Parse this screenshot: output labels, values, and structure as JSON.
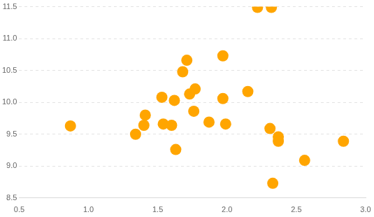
{
  "chart_data": {
    "type": "scatter",
    "x": [
      0.87,
      1.34,
      1.4,
      1.41,
      1.53,
      1.54,
      1.6,
      1.62,
      1.63,
      1.68,
      1.71,
      1.73,
      1.77,
      1.76,
      1.87,
      1.97,
      1.97,
      1.99,
      2.15,
      2.22,
      2.32,
      2.31,
      2.37,
      2.37,
      2.33,
      2.56,
      2.84
    ],
    "values": [
      9.63,
      9.5,
      9.64,
      9.8,
      10.08,
      9.66,
      9.64,
      10.03,
      9.26,
      10.48,
      10.66,
      10.13,
      10.21,
      9.86,
      9.69,
      10.73,
      10.06,
      9.66,
      10.17,
      11.49,
      11.49,
      9.59,
      9.46,
      9.39,
      8.73,
      9.09,
      9.39
    ],
    "color": "#ffa500",
    "marker": "circle",
    "xlim": [
      0.5,
      3.0
    ],
    "xticks": [
      0.5,
      {
        "value": 1,
        "label": "1.0"
      },
      1.5,
      {
        "value": 2,
        "label": "2.0"
      },
      2.5,
      {
        "value": 3,
        "label": "3.0"
      }
    ],
    "ylim": [
      8.5,
      11.5
    ],
    "yticks": [
      8.5,
      {
        "value": 9,
        "label": "9.0"
      },
      9.5,
      {
        "value": 10,
        "label": "10.0"
      },
      10.5,
      {
        "value": 11,
        "label": "11.0"
      },
      11.5
    ],
    "grid": true
  }
}
